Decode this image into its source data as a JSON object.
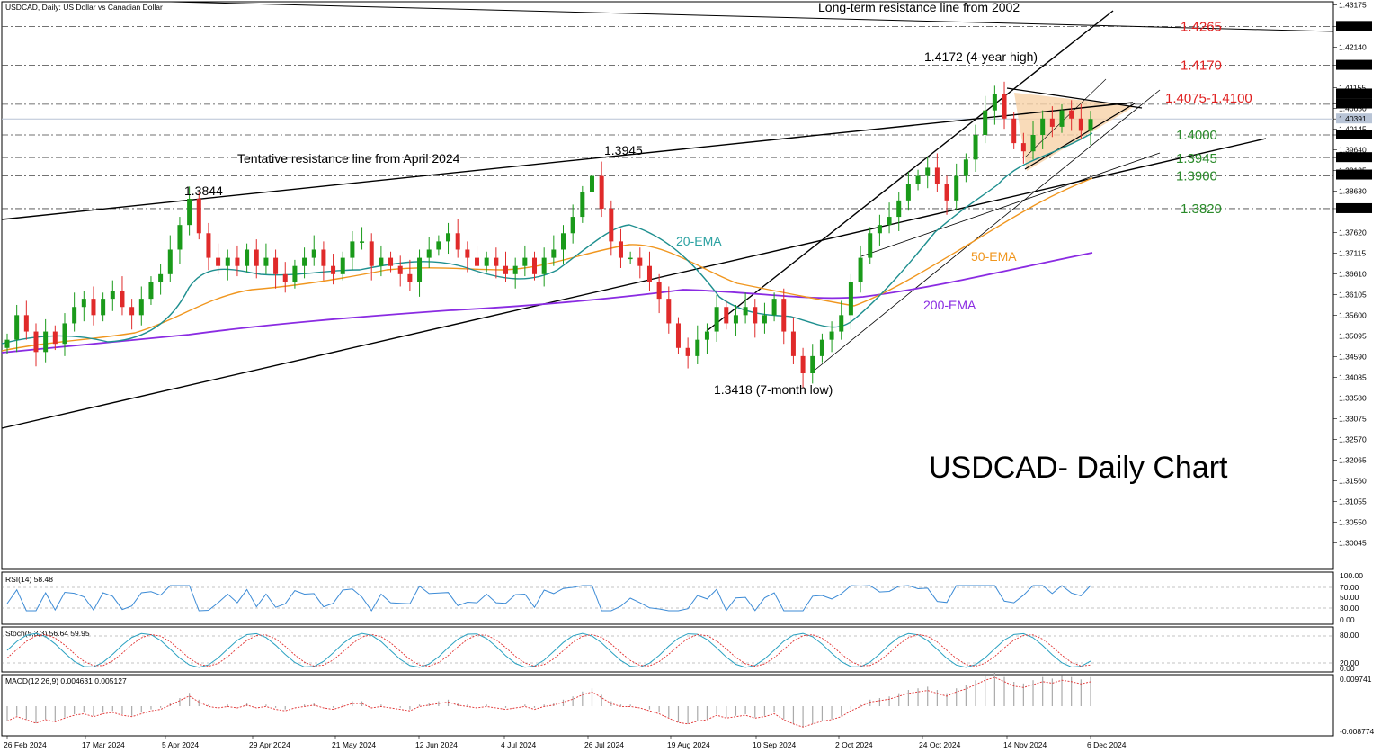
{
  "window": {
    "symbol_title": "USDCAD, Daily:  US Dollar vs Canadian Dollar",
    "main_title": "USDCAD- Daily Chart"
  },
  "chart_data": [
    {
      "type": "line",
      "panel": "price",
      "title": "USDCAD- Daily Chart",
      "y_ticks": [
        "1.43175",
        "1.42650",
        "1.42140",
        "1.41700",
        "1.41155",
        "1.41000",
        "1.40757",
        "1.40650",
        "1.40391",
        "1.40145",
        "1.40000",
        "1.39640",
        "1.39447",
        "1.39135",
        "1.39022",
        "1.38630",
        "1.38200",
        "1.37620",
        "1.37115",
        "1.36610",
        "1.36105",
        "1.35600",
        "1.35095",
        "1.34590",
        "1.34085",
        "1.33580",
        "1.33075",
        "1.32570",
        "1.32065",
        "1.31560",
        "1.31055",
        "1.30550",
        "1.30045"
      ],
      "x_labels": [
        "26 Feb 2024",
        "17 Mar 2024",
        "5 Apr 2024",
        "29 Apr 2024",
        "21 May 2024",
        "12 Jun 2024",
        "4 Jul 2024",
        "26 Jul 2024",
        "19 Aug 2024",
        "10 Sep 2024",
        "2 Oct 2024",
        "24 Oct 2024",
        "14 Nov 2024",
        "6 Dec 2024"
      ],
      "levels": [
        {
          "label": "1.4265",
          "value": 1.4265,
          "color": "#e02020"
        },
        {
          "label": "1.4170",
          "value": 1.417,
          "color": "#e02020"
        },
        {
          "label": "1.4075-1.4100",
          "value": 1.41,
          "color": "#e02020"
        },
        {
          "label": "1.4000",
          "value": 1.4,
          "color": "#2a8a2a"
        },
        {
          "label": "1.3945",
          "value": 1.3945,
          "color": "#2a8a2a"
        },
        {
          "label": "1.3900",
          "value": 1.39,
          "color": "#2a8a2a"
        },
        {
          "label": "1.3820",
          "value": 1.382,
          "color": "#2a8a2a"
        }
      ],
      "annotations": [
        "Long-term resistance line from 2002",
        "1.4172 (4-year high)",
        "Tentative resistance line from April 2024",
        "1.3945",
        "1.3844",
        "1.3418 (7-month low)"
      ],
      "series": [
        {
          "name": "20-EMA",
          "color": "#2aa1a1"
        },
        {
          "name": "50-EMA",
          "color": "#f0961e"
        },
        {
          "name": "200-EMA",
          "color": "#8a2be2"
        }
      ],
      "price_path": [
        1.35,
        1.356,
        1.352,
        1.347,
        1.352,
        1.349,
        1.354,
        1.358,
        1.36,
        1.356,
        1.36,
        1.362,
        1.358,
        1.356,
        1.36,
        1.364,
        1.366,
        1.372,
        1.378,
        1.3844,
        1.376,
        1.37,
        1.368,
        1.37,
        1.368,
        1.372,
        1.368,
        1.37,
        1.366,
        1.364,
        1.368,
        1.37,
        1.372,
        1.368,
        1.366,
        1.37,
        1.374,
        1.374,
        1.368,
        1.37,
        1.368,
        1.366,
        1.364,
        1.37,
        1.372,
        1.374,
        1.376,
        1.372,
        1.37,
        1.368,
        1.37,
        1.368,
        1.366,
        1.368,
        1.37,
        1.366,
        1.37,
        1.372,
        1.376,
        1.38,
        1.386,
        1.39,
        1.382,
        1.374,
        1.37,
        1.37,
        1.368,
        1.364,
        1.36,
        1.354,
        1.348,
        1.346,
        1.35,
        1.352,
        1.358,
        1.354,
        1.356,
        1.358,
        1.354,
        1.356,
        1.36,
        1.352,
        1.346,
        1.3418,
        1.346,
        1.35,
        1.352,
        1.356,
        1.364,
        1.37,
        1.376,
        1.378,
        1.38,
        1.384,
        1.388,
        1.39,
        1.392,
        1.388,
        1.384,
        1.39,
        1.394,
        1.4,
        1.406,
        1.41,
        1.404,
        1.398,
        1.396,
        1.4,
        1.404,
        1.402,
        1.406,
        1.404,
        1.401,
        1.4039
      ]
    },
    {
      "type": "line",
      "panel": "rsi",
      "label": "RSI(14) 58.48",
      "y_ticks": [
        "100.00",
        "70.00",
        "50.00",
        "30.00",
        "0.00"
      ]
    },
    {
      "type": "line",
      "panel": "stochastic",
      "label": "Stoch(5,3,3) 56.64 59.95",
      "y_ticks": [
        "80.00",
        "20.00",
        "0.00"
      ]
    },
    {
      "type": "bar",
      "panel": "macd",
      "label": "MACD(12,26,9) 0.004631 0.005127",
      "y_ticks": [
        "0.009741",
        "-0.008774"
      ]
    }
  ]
}
